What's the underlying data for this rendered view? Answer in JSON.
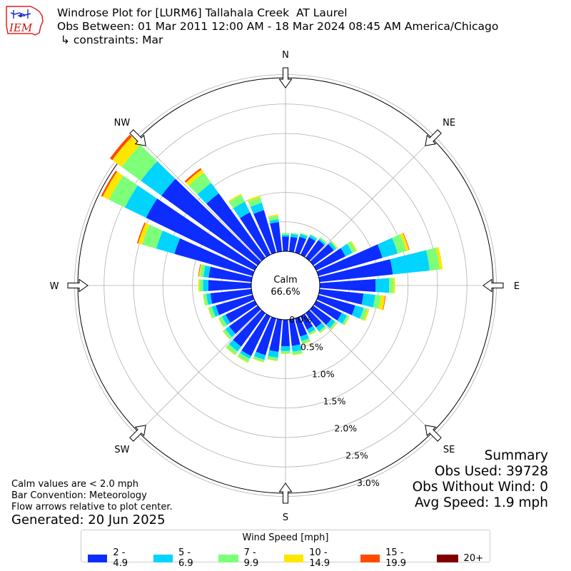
{
  "header": {
    "logo_text": "IEM",
    "title_line1": "Windrose Plot for [LURM6] Tallahala Creek  AT Laurel",
    "title_line2": "Obs Between: 01 Mar 2011 12:00 AM - 18 Mar 2024 08:45 AM America/Chicago",
    "title_line3": " ↳ constraints: Mar"
  },
  "notes": {
    "calm_note": "Calm values are < 2.0 mph",
    "bar_convention": "Bar Convention: Meteorology",
    "flow_note": "Flow arrows relative to plot center.",
    "generated": "Generated: 20 Jun 2025"
  },
  "summary": {
    "heading": "Summary",
    "obs_used": "Obs Used: 39728",
    "obs_without_wind": "Obs Without Wind: 0",
    "avg_speed": "Avg Speed: 1.9 mph"
  },
  "chart_data": {
    "type": "windrose",
    "calm_label": "Calm",
    "calm_value": "66.6%",
    "directions": [
      "N",
      "NE",
      "E",
      "SE",
      "S",
      "SW",
      "W",
      "NW"
    ],
    "radial_ticks": [
      "0.0%",
      "0.5%",
      "1.0%",
      "1.5%",
      "2.0%",
      "2.5%",
      "3.0%"
    ],
    "rmax_percent": 3.0,
    "legend_title": "Wind Speed [mph]",
    "bins": [
      {
        "label": "2 - 4.9",
        "color": "#0d2cff"
      },
      {
        "label": "5 - 6.9",
        "color": "#00d4ff"
      },
      {
        "label": "7 - 9.9",
        "color": "#7dff7a"
      },
      {
        "label": "10 - 14.9",
        "color": "#ffe600"
      },
      {
        "label": "15 - 19.9",
        "color": "#ff4a00"
      },
      {
        "label": "20+",
        "color": "#800000"
      }
    ],
    "sector_angles_deg": [
      0,
      10,
      20,
      30,
      40,
      50,
      60,
      70,
      80,
      90,
      100,
      110,
      120,
      130,
      140,
      150,
      160,
      170,
      180,
      190,
      200,
      210,
      220,
      230,
      240,
      250,
      260,
      270,
      280,
      290,
      300,
      310,
      320,
      330,
      340,
      350
    ],
    "cumulative_percent": [
      [
        0.25,
        0.28,
        0.31,
        0.31,
        0,
        0
      ],
      [
        0.25,
        0.3,
        0.32,
        0.32,
        0,
        0
      ],
      [
        0.28,
        0.33,
        0.35,
        0.35,
        0,
        0
      ],
      [
        0.33,
        0.37,
        0.39,
        0.39,
        0,
        0
      ],
      [
        0.37,
        0.4,
        0.43,
        0.43,
        0,
        0
      ],
      [
        0.43,
        0.48,
        0.5,
        0.51,
        0,
        0
      ],
      [
        0.55,
        0.68,
        0.75,
        0.77,
        0.77,
        0
      ],
      [
        1.13,
        1.4,
        1.55,
        1.6,
        1.61,
        0
      ],
      [
        1.25,
        1.88,
        2.05,
        2.1,
        2.1,
        0
      ],
      [
        0.95,
        1.18,
        1.25,
        1.28,
        1.28,
        0
      ],
      [
        0.75,
        0.95,
        1.05,
        1.12,
        1.13,
        0
      ],
      [
        0.65,
        0.8,
        0.87,
        0.9,
        0.9,
        0
      ],
      [
        0.48,
        0.58,
        0.62,
        0.63,
        0,
        0
      ],
      [
        0.38,
        0.46,
        0.49,
        0.5,
        0,
        0
      ],
      [
        0.3,
        0.38,
        0.41,
        0.42,
        0,
        0
      ],
      [
        0.25,
        0.32,
        0.35,
        0.36,
        0,
        0
      ],
      [
        0.32,
        0.4,
        0.45,
        0.46,
        0,
        0
      ],
      [
        0.45,
        0.55,
        0.6,
        0.61,
        0,
        0
      ],
      [
        0.45,
        0.53,
        0.57,
        0.58,
        0,
        0
      ],
      [
        0.55,
        0.65,
        0.7,
        0.71,
        0,
        0
      ],
      [
        0.65,
        0.73,
        0.77,
        0.78,
        0,
        0
      ],
      [
        0.75,
        0.8,
        0.87,
        0.88,
        0,
        0
      ],
      [
        0.7,
        0.8,
        0.87,
        0.88,
        0,
        0
      ],
      [
        0.6,
        0.68,
        0.73,
        0.74,
        0,
        0
      ],
      [
        0.55,
        0.62,
        0.68,
        0.69,
        0,
        0
      ],
      [
        0.65,
        0.72,
        0.78,
        0.79,
        0,
        0
      ],
      [
        0.7,
        0.77,
        0.82,
        0.83,
        0,
        0
      ],
      [
        0.73,
        0.82,
        0.88,
        0.9,
        0,
        0
      ],
      [
        0.73,
        0.82,
        0.88,
        0.9,
        0.91,
        0
      ],
      [
        1.38,
        1.7,
        1.95,
        2.02,
        2.04,
        0
      ],
      [
        2.05,
        2.45,
        2.75,
        2.87,
        2.9,
        0
      ],
      [
        2.02,
        2.45,
        2.85,
        3.05,
        3.1,
        0
      ],
      [
        1.35,
        1.57,
        1.78,
        1.85,
        1.88,
        0
      ],
      [
        0.8,
        1.0,
        1.13,
        1.15,
        1.15,
        0
      ],
      [
        0.75,
        0.88,
        0.98,
        1.01,
        0,
        0
      ],
      [
        0.5,
        0.55,
        0.61,
        0.63,
        0,
        0
      ]
    ]
  }
}
